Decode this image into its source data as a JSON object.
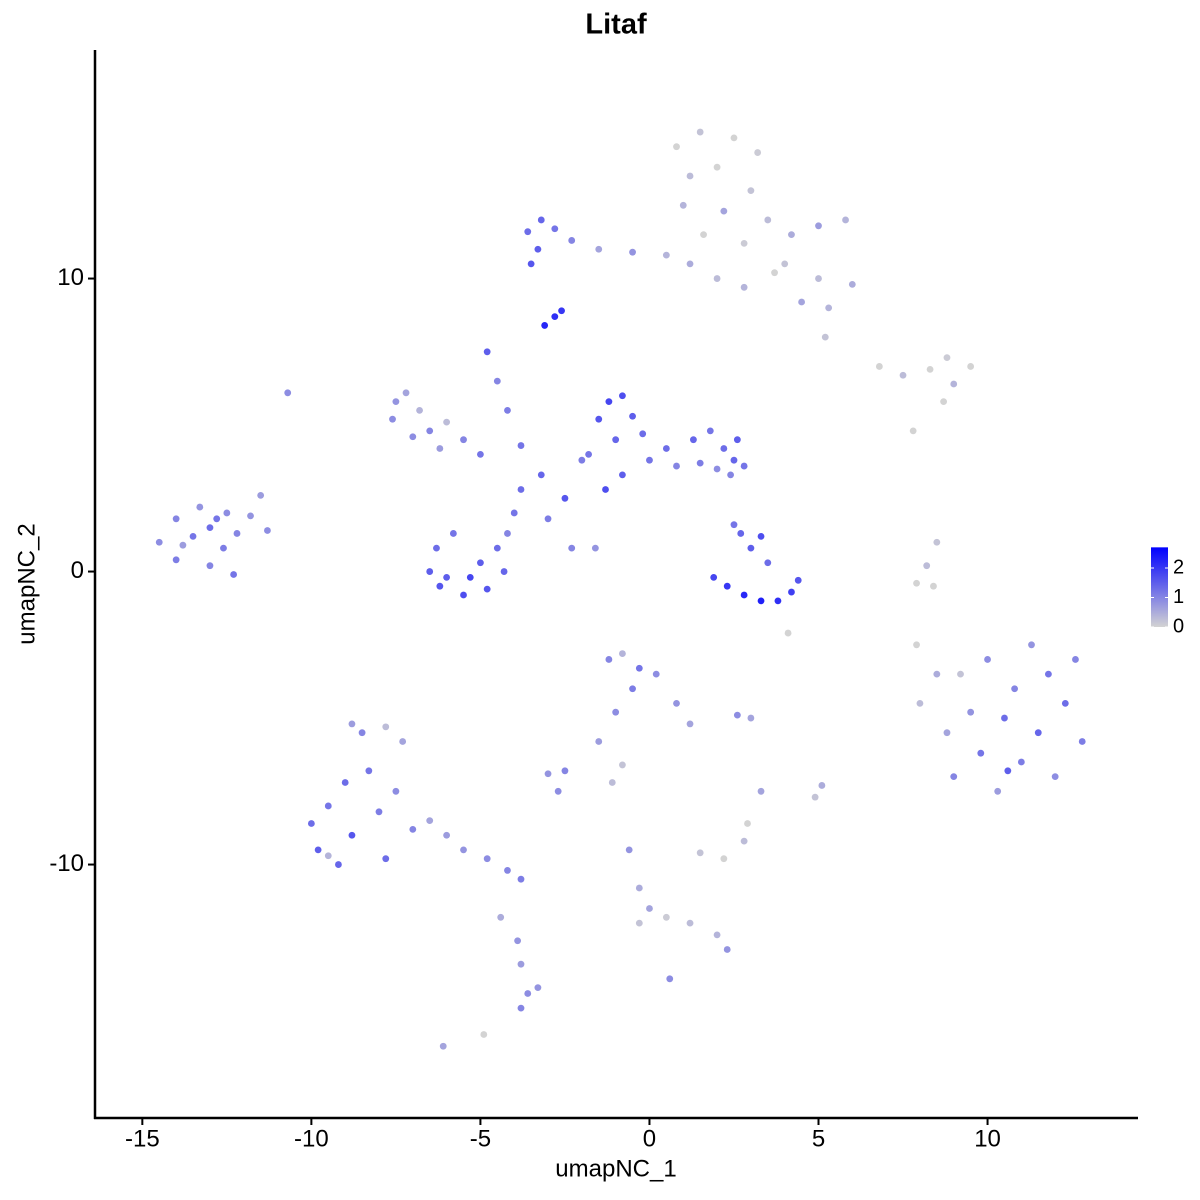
{
  "chart_data": {
    "type": "scatter",
    "title": "Litaf",
    "x_label": "umapNC_1",
    "y_label": "umapNC_2",
    "xlim": [
      -16.4,
      14.45
    ],
    "ylim": [
      -18.65,
      17.8
    ],
    "xticks": [
      -15,
      -10,
      -5,
      0,
      5,
      10
    ],
    "yticks": [
      -10,
      0,
      10
    ],
    "color_low": "#d3d3d3",
    "color_high": "#0000ff",
    "color_lim": [
      0,
      2.7
    ],
    "color_ticks": [
      0,
      1,
      2
    ],
    "x": [
      -14.5,
      -14,
      -14,
      -13.5,
      -13.3,
      -13,
      -13,
      -12.6,
      -12.5,
      -12.2,
      -12.3,
      -11.8,
      -11.5,
      -11.3,
      -13.8,
      -12.8,
      -10.7,
      -7.5,
      -7.2,
      -7.6,
      -6.8,
      -6.5,
      -7,
      -6,
      -5.5,
      -5,
      -6.2,
      -6.3,
      -6.5,
      -6.2,
      -5.5,
      -4.8,
      -4.3,
      -5.8,
      -5,
      -5.3,
      -4.5,
      -6,
      -4.2,
      -4,
      -3.8,
      -3.2,
      -2.5,
      -3,
      -4.8,
      -4.5,
      -4.2,
      -3.8,
      -2.3,
      -1.6,
      -2,
      -1.5,
      -1.2,
      -0.8,
      -0.5,
      -1,
      -0.2,
      0,
      -0.8,
      -1.8,
      -1.3,
      0.5,
      0.8,
      1.3,
      1.8,
      2.2,
      2.5,
      2.6,
      1.5,
      2.0,
      2.4,
      2.8,
      -3.1,
      -2.8,
      -2.6,
      -3.6,
      -3.2,
      -2.8,
      -3.3,
      -2.3,
      -1.5,
      -0.5,
      0.5,
      1.2,
      2,
      2.8,
      -3.5,
      0.8,
      1.5,
      2.5,
      3.2,
      1.2,
      2,
      3,
      1,
      2.2,
      3.5,
      4.2,
      5,
      5.8,
      4,
      5,
      6,
      4.5,
      5.3,
      1.6,
      2.8,
      3.7,
      5.2,
      6.8,
      7.5,
      8.3,
      8.8,
      9.5,
      9,
      8.7,
      7.8,
      8.5,
      8.2,
      7.9,
      8.4,
      7.9,
      1.9,
      2.3,
      2.8,
      3.3,
      3.8,
      4.2,
      4.4,
      3.0,
      3.3,
      2.7,
      3.5,
      4.1,
      2.5,
      8,
      8.5,
      8.8,
      9,
      9.5,
      9.8,
      10,
      10.3,
      10.5,
      10.8,
      11,
      11.3,
      11.5,
      11.8,
      12,
      12.3,
      12.6,
      12.8,
      9.2,
      10.6,
      -1.2,
      -0.8,
      -0.3,
      0.2,
      -0.5,
      0.8,
      1.2,
      -1,
      -1.5,
      -2.5,
      -3,
      -2.7,
      2.6,
      3.0,
      -1.1,
      -0.8,
      -0.6,
      -0.3,
      0,
      -0.3,
      0.5,
      1.2,
      2,
      2.3,
      0.6,
      1.5,
      2.2,
      2.8,
      2.9,
      3.3,
      5.1,
      4.9,
      -10,
      -9.8,
      -9.5,
      -9.2,
      -9,
      -8.8,
      -8.5,
      -8.3,
      -8,
      -7.8,
      -7.5,
      -7.3,
      -7,
      -8.8,
      -6.5,
      -6,
      -5.5,
      -4.8,
      -4.2,
      -3.8,
      -4.4,
      -3.9,
      -3.8,
      -3.6,
      -3.8,
      -3.3,
      -6.1,
      -4.9,
      -9.5,
      -7.8
    ],
    "y": [
      1.0,
      1.8,
      0.4,
      1.2,
      2.2,
      0.2,
      1.5,
      0.8,
      2.0,
      1.3,
      -0.1,
      1.9,
      2.6,
      1.4,
      0.9,
      1.8,
      6.1,
      5.8,
      6.1,
      5.2,
      5.5,
      4.8,
      4.6,
      5.1,
      4.5,
      4.0,
      4.2,
      0.8,
      0,
      -0.5,
      -0.8,
      -0.6,
      0,
      1.3,
      0.3,
      -0.2,
      0.8,
      -0.2,
      1.3,
      2,
      2.8,
      3.3,
      2.5,
      1.8,
      7.5,
      6.5,
      5.5,
      4.3,
      0.8,
      0.8,
      3.8,
      5.2,
      5.8,
      6.0,
      5.3,
      4.5,
      4.7,
      3.8,
      3.3,
      4.0,
      2.8,
      4.2,
      3.6,
      4.5,
      4.8,
      4.2,
      3.8,
      4.5,
      3.7,
      3.5,
      3.3,
      3.6,
      8.4,
      8.7,
      8.9,
      11.6,
      12,
      11.7,
      11,
      11.3,
      11,
      10.9,
      10.8,
      10.5,
      10.0,
      9.7,
      10.5,
      14.5,
      15,
      14.8,
      14.3,
      13.5,
      13.8,
      13,
      12.5,
      12.3,
      12,
      11.5,
      11.8,
      12,
      10.5,
      10,
      9.8,
      9.2,
      9.0,
      11.5,
      11.2,
      10.2,
      8.0,
      7.0,
      6.7,
      6.9,
      7.3,
      7.0,
      6.4,
      5.8,
      4.8,
      1.0,
      0.2,
      -0.4,
      -0.5,
      -2.5,
      -0.2,
      -0.5,
      -0.8,
      -1.0,
      -1.0,
      -0.7,
      -0.3,
      0.8,
      1.2,
      1.3,
      0.3,
      -2.1,
      1.6,
      -4.5,
      -3.5,
      -5.5,
      -7,
      -4.8,
      -6.2,
      -3,
      -7.5,
      -5,
      -4,
      -6.5,
      -2.5,
      -5.5,
      -3.5,
      -7,
      -4.5,
      -3,
      -5.8,
      -3.5,
      -6.8,
      -3,
      -2.8,
      -3.3,
      -3.5,
      -4,
      -4.5,
      -5.2,
      -4.8,
      -5.8,
      -6.8,
      -6.9,
      -7.5,
      -4.9,
      -5.0,
      -7.2,
      -6.6,
      -9.5,
      -10.8,
      -11.5,
      -12,
      -11.8,
      -12,
      -12.4,
      -12.9,
      -13.9,
      -9.6,
      -9.8,
      -9.2,
      -8.6,
      -7.5,
      -7.3,
      -7.7,
      -8.6,
      -9.5,
      -8,
      -10,
      -7.2,
      -9,
      -5.5,
      -6.8,
      -8.2,
      -9.8,
      -7.5,
      -5.8,
      -8.8,
      -5.2,
      -8.5,
      -9,
      -9.5,
      -9.8,
      -10.2,
      -10.5,
      -11.8,
      -12.6,
      -13.4,
      -14.4,
      -14.9,
      -14.2,
      -16.2,
      -15.8,
      -9.7,
      -5.3
    ],
    "values": [
      0.9,
      1.0,
      1.1,
      1.2,
      0.8,
      1.0,
      1.3,
      1.1,
      0.9,
      1.0,
      1.2,
      0.8,
      0.7,
      0.9,
      0.7,
      1.2,
      0.9,
      0.8,
      0.6,
      0.9,
      0.4,
      1.0,
      0.9,
      0.3,
      1.0,
      1.2,
      0.7,
      1.3,
      1.5,
      1.6,
      1.7,
      1.6,
      1.4,
      1.2,
      1.5,
      1.8,
      1.3,
      1.5,
      1.0,
      1.2,
      1.3,
      1.4,
      1.6,
      1.1,
      1.5,
      1.0,
      1.1,
      1.2,
      1.0,
      0.8,
      1.1,
      1.6,
      1.8,
      1.7,
      1.5,
      1.4,
      1.3,
      1.2,
      1.5,
      1.2,
      1.7,
      1.3,
      1.0,
      1.4,
      1.2,
      1.3,
      1.4,
      1.5,
      1.1,
      0.9,
      1.0,
      1.2,
      2.2,
      2.1,
      2.0,
      1.3,
      1.4,
      1.2,
      1.5,
      1.0,
      0.6,
      0.8,
      0.4,
      0.5,
      0.3,
      0.4,
      1.6,
      0.0,
      0.2,
      0.0,
      0.1,
      0.3,
      0.0,
      0.2,
      0.4,
      0.6,
      0.3,
      0.5,
      0.7,
      0.4,
      0.2,
      0.3,
      0.5,
      0.6,
      0.4,
      0.0,
      0.1,
      0.0,
      0.2,
      0.0,
      0.3,
      0.0,
      0.1,
      0.0,
      0.4,
      0.0,
      0.0,
      0.2,
      0.3,
      0.0,
      0.0,
      0.0,
      1.8,
      2.0,
      2.2,
      2.3,
      2.1,
      1.9,
      1.6,
      1.5,
      1.7,
      1.4,
      1.3,
      0.0,
      1.2,
      0.3,
      0.5,
      0.6,
      1.0,
      0.8,
      1.2,
      0.9,
      0.7,
      1.3,
      1.0,
      1.1,
      0.8,
      1.4,
      1.2,
      0.9,
      1.3,
      1.0,
      1.1,
      0.2,
      1.5,
      1.0,
      0.4,
      1.2,
      0.9,
      1.1,
      0.8,
      0.6,
      0.9,
      0.7,
      1.0,
      0.8,
      0.9,
      0.9,
      0.6,
      0.3,
      0.2,
      0.8,
      0.5,
      0.6,
      0.2,
      0.1,
      0.3,
      0.4,
      0.8,
      0.9,
      0.2,
      0.0,
      0.3,
      0.0,
      0.6,
      0.5,
      0.2,
      1.3,
      1.5,
      1.2,
      1.4,
      1.3,
      1.6,
      1.0,
      1.2,
      1.1,
      1.3,
      0.9,
      0.6,
      1.0,
      0.7,
      0.6,
      0.7,
      0.8,
      0.9,
      1.0,
      1.1,
      0.5,
      0.8,
      0.7,
      0.9,
      1.0,
      0.8,
      0.6,
      0.0,
      0.4,
      0.3
    ]
  }
}
